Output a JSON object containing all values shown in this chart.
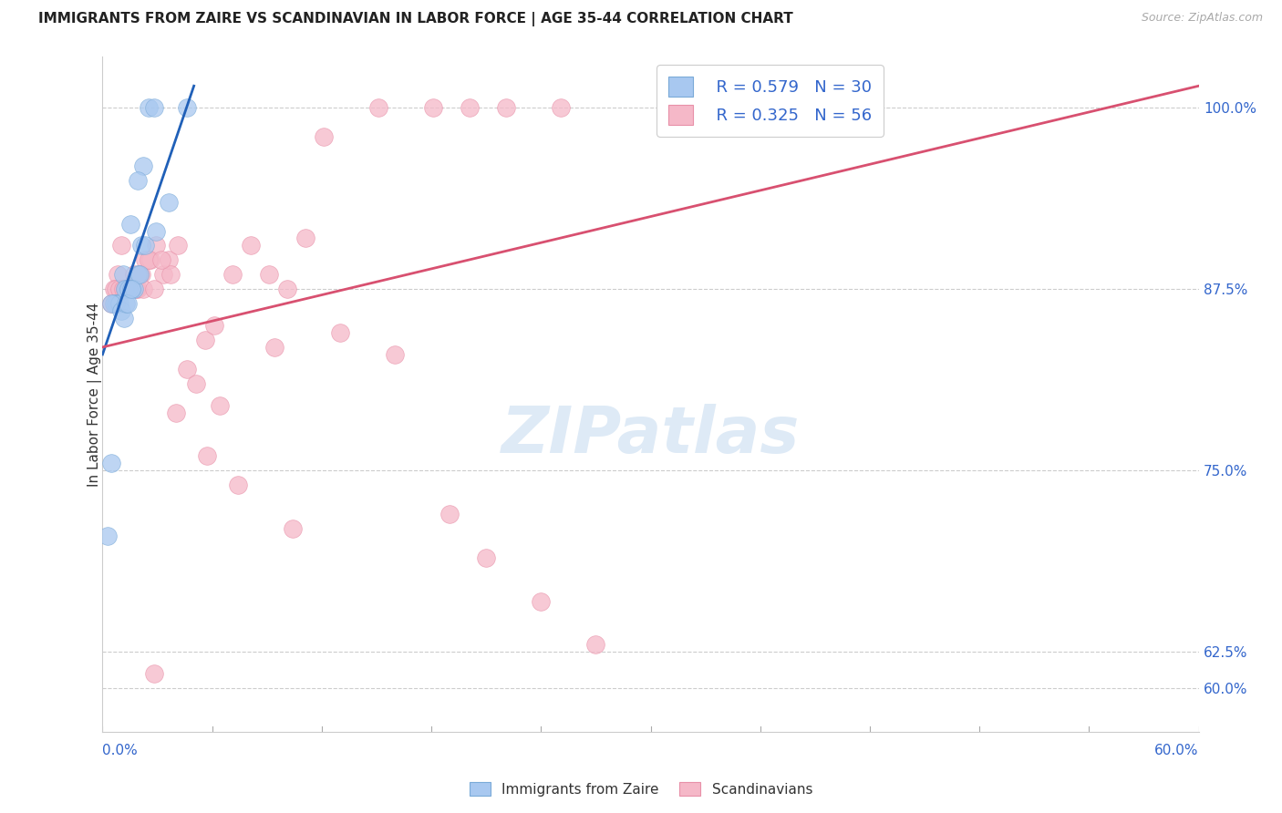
{
  "title": "IMMIGRANTS FROM ZAIRE VS SCANDINAVIAN IN LABOR FORCE | AGE 35-44 CORRELATION CHART",
  "source": "Source: ZipAtlas.com",
  "ylabel": "In Labor Force | Age 35-44",
  "right_yticks": [
    60.0,
    62.5,
    75.0,
    87.5,
    100.0
  ],
  "xmin": 0.0,
  "xmax": 60.0,
  "ymin": 57.0,
  "ymax": 103.5,
  "blue_R": 0.579,
  "blue_N": 30,
  "pink_R": 0.325,
  "pink_N": 56,
  "blue_color": "#A8C8F0",
  "pink_color": "#F5B8C8",
  "blue_edge_color": "#7AAAD8",
  "pink_edge_color": "#E890A8",
  "blue_line_color": "#2060B8",
  "pink_line_color": "#D85070",
  "legend_text_color": "#3366CC",
  "blue_scatter_x": [
    1.5,
    2.2,
    2.5,
    2.8,
    1.9,
    1.1,
    0.5,
    0.8,
    1.3,
    1.6,
    1.9,
    2.1,
    0.7,
    0.6,
    0.9,
    1.2,
    1.4,
    1.7,
    2.0,
    2.3,
    2.9,
    3.6,
    0.5,
    1.0,
    1.15,
    1.25,
    1.35,
    1.55,
    4.6,
    0.3
  ],
  "blue_scatter_y": [
    92.0,
    96.0,
    100.0,
    100.0,
    95.0,
    88.5,
    75.5,
    86.5,
    87.5,
    87.5,
    88.5,
    90.5,
    86.5,
    86.5,
    86.5,
    87.5,
    87.5,
    87.5,
    88.5,
    90.5,
    91.5,
    93.5,
    86.5,
    86.0,
    85.5,
    86.5,
    86.5,
    87.5,
    100.0,
    70.5
  ],
  "pink_scatter_x": [
    0.5,
    0.8,
    1.0,
    1.3,
    1.5,
    1.7,
    1.9,
    2.1,
    2.3,
    2.6,
    2.9,
    3.3,
    3.6,
    4.1,
    4.6,
    5.1,
    5.6,
    6.1,
    7.1,
    8.1,
    9.1,
    10.1,
    11.1,
    12.1,
    15.1,
    18.1,
    20.1,
    22.1,
    25.1,
    0.6,
    0.7,
    0.9,
    1.1,
    1.2,
    1.4,
    1.6,
    1.8,
    2.0,
    2.2,
    2.5,
    2.8,
    3.7,
    6.4,
    9.4,
    13.0,
    16.0,
    19.0,
    21.0,
    24.0,
    27.0,
    3.2,
    4.0,
    5.7,
    7.4,
    10.4,
    2.8
  ],
  "pink_scatter_y": [
    86.5,
    88.5,
    90.5,
    87.5,
    87.5,
    88.5,
    87.5,
    88.5,
    89.5,
    89.5,
    90.5,
    88.5,
    89.5,
    90.5,
    82.0,
    81.0,
    84.0,
    85.0,
    88.5,
    90.5,
    88.5,
    87.5,
    91.0,
    98.0,
    100.0,
    100.0,
    100.0,
    100.0,
    100.0,
    87.5,
    87.5,
    87.5,
    87.5,
    87.5,
    87.5,
    87.5,
    87.5,
    88.5,
    87.5,
    89.5,
    87.5,
    88.5,
    79.5,
    83.5,
    84.5,
    83.0,
    72.0,
    69.0,
    66.0,
    63.0,
    89.5,
    79.0,
    76.0,
    74.0,
    71.0,
    61.0
  ],
  "blue_trend_x": [
    0.0,
    5.0
  ],
  "blue_trend_y": [
    83.0,
    101.5
  ],
  "pink_trend_x": [
    0.0,
    60.0
  ],
  "pink_trend_y": [
    83.5,
    101.5
  ]
}
